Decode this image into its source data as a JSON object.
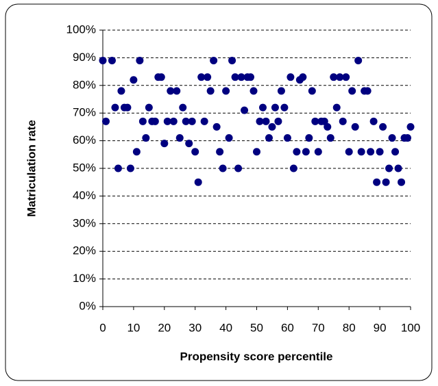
{
  "chart_data": {
    "type": "scatter",
    "x_label": "Propensity score percentile",
    "y_label": "Matriculation rate",
    "color": "#000080",
    "grid": true,
    "xlim": [
      0,
      100
    ],
    "xticks": [
      0,
      10,
      20,
      30,
      40,
      50,
      60,
      70,
      80,
      90,
      100
    ],
    "ylim": [
      0,
      100
    ],
    "yticks": [
      {
        "value": 0,
        "label": "0%"
      },
      {
        "value": 10,
        "label": "10%"
      },
      {
        "value": 20,
        "label": "20%"
      },
      {
        "value": 30,
        "label": "30%"
      },
      {
        "value": 40,
        "label": "40%"
      },
      {
        "value": 50,
        "label": "50%"
      },
      {
        "value": 60,
        "label": "60%"
      },
      {
        "value": 70,
        "label": "70%"
      },
      {
        "value": 80,
        "label": "80%"
      },
      {
        "value": 90,
        "label": "90%"
      },
      {
        "value": 100,
        "label": "100%"
      }
    ],
    "x": [
      0,
      1,
      3,
      4,
      5,
      6,
      7,
      8,
      9,
      10,
      11,
      12,
      13,
      14,
      15,
      16,
      17,
      18,
      19,
      20,
      21,
      22,
      23,
      24,
      25,
      26,
      27,
      28,
      29,
      30,
      31,
      32,
      33,
      34,
      35,
      36,
      37,
      38,
      39,
      40,
      41,
      42,
      43,
      44,
      45,
      46,
      47,
      48,
      49,
      50,
      51,
      52,
      53,
      54,
      55,
      56,
      57,
      58,
      59,
      60,
      61,
      62,
      63,
      64,
      65,
      66,
      67,
      68,
      69,
      70,
      71,
      72,
      73,
      74,
      75,
      76,
      77,
      78,
      79,
      80,
      81,
      82,
      83,
      84,
      85,
      86,
      87,
      88,
      89,
      90,
      91,
      92,
      93,
      94,
      95,
      96,
      97,
      98,
      99,
      100
    ],
    "values": [
      89,
      67,
      89,
      72,
      50,
      78,
      72,
      72,
      50,
      82,
      56,
      89,
      67,
      61,
      72,
      67,
      67,
      83,
      83,
      59,
      67,
      78,
      67,
      78,
      61,
      72,
      67,
      59,
      67,
      56,
      45,
      83,
      67,
      83,
      78,
      89,
      65,
      56,
      50,
      78,
      61,
      89,
      83,
      50,
      83,
      71,
      83,
      83,
      78,
      56,
      67,
      72,
      67,
      61,
      65,
      72,
      67,
      78,
      72,
      61,
      83,
      50,
      56,
      82,
      83,
      56,
      61,
      78,
      67,
      56,
      67,
      67,
      65,
      61,
      83,
      72,
      83,
      67,
      83,
      56,
      78,
      65,
      89,
      56,
      78,
      78,
      56,
      67,
      45,
      56,
      65,
      45,
      50,
      61,
      56,
      50,
      45,
      61,
      61,
      65
    ]
  }
}
